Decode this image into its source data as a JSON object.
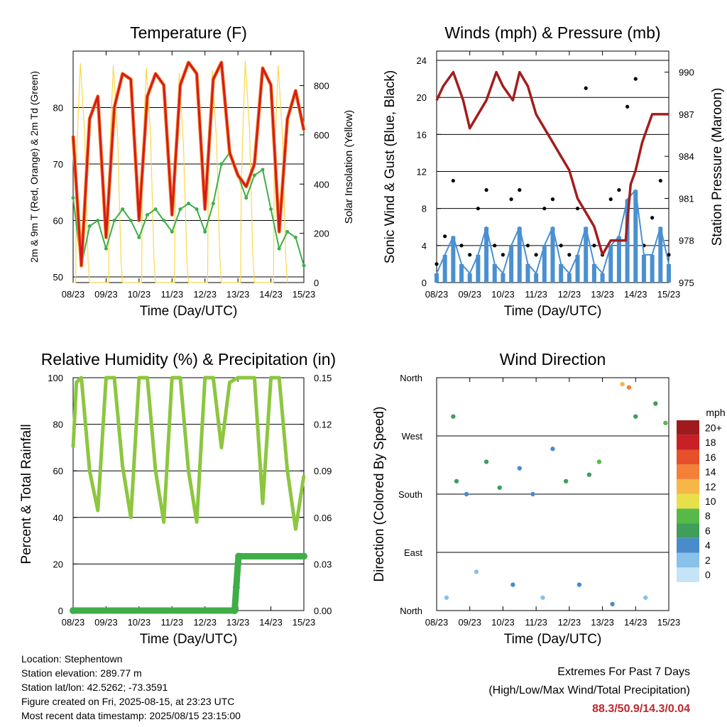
{
  "station": {
    "location": "Location: Stephentown",
    "elevation": "Station elevation: 289.77 m",
    "latlon": "Station lat/lon: 42.5262; -73.3591",
    "created": "Figure created on Fri, 2025-08-15, at 23:23 UTC",
    "latest": "Most recent data timestamp: 2025/08/15 23:15:00"
  },
  "extremes": {
    "title": "Extremes For Past 7 Days",
    "subtitle": "(High/Low/Max Wind/Total Precipitation)",
    "values": "88.3/50.9/14.3/0.04",
    "color": "#c0272d"
  },
  "chart_data": [
    {
      "type": "line",
      "title": "Temperature (F)",
      "xlabel": "Time (Day/UTC)",
      "ylabel": "2m & 9m T (Red, Orange) & 2m Td (Green)",
      "y2label": "Solar Insolation (Yellow)",
      "categories": [
        "08/23",
        "09/23",
        "10/23",
        "11/23",
        "12/23",
        "13/23",
        "14/23",
        "15/23"
      ],
      "xlim": [
        0,
        7
      ],
      "ylim": [
        49,
        90
      ],
      "y2lim": [
        0,
        940
      ],
      "yticks": [
        50,
        60,
        70,
        80
      ],
      "y2ticks": [
        0,
        200,
        400,
        600,
        800
      ],
      "grid": "horizontal at 50, 60, 70, 80",
      "colors": {
        "t2m": "#d7191c",
        "t9m": "#f28e2b",
        "td": "#3fae49",
        "solar": "#f9d84a"
      },
      "series": [
        {
          "name": "2m T",
          "x": [
            0,
            0.25,
            0.5,
            0.75,
            1,
            1.25,
            1.5,
            1.75,
            2,
            2.25,
            2.5,
            2.75,
            3,
            3.25,
            3.5,
            3.75,
            4,
            4.25,
            4.5,
            4.75,
            5,
            5.25,
            5.5,
            5.75,
            6,
            6.25,
            6.5,
            6.75,
            7
          ],
          "values": [
            75,
            52,
            78,
            82,
            57,
            80,
            86,
            85,
            60,
            82,
            86,
            84,
            61,
            84,
            88,
            86,
            62,
            85,
            88,
            72,
            68,
            66,
            70,
            87,
            84,
            58,
            78,
            83,
            76
          ]
        },
        {
          "name": "Td",
          "x": [
            0,
            0.25,
            0.5,
            0.75,
            1,
            1.25,
            1.5,
            1.75,
            2,
            2.25,
            2.5,
            2.75,
            3,
            3.25,
            3.5,
            3.75,
            4,
            4.25,
            4.5,
            4.75,
            5,
            5.25,
            5.5,
            5.75,
            6,
            6.25,
            6.5,
            6.75,
            7
          ],
          "values": [
            64,
            52,
            59,
            60,
            55,
            60,
            62,
            60,
            57,
            61,
            62,
            60,
            58,
            62,
            63,
            62,
            58,
            63,
            70,
            72,
            68,
            64,
            68,
            69,
            62,
            55,
            58,
            57,
            52
          ]
        },
        {
          "name": "Solar",
          "x": [
            0,
            0.08,
            0.1,
            0.22,
            0.35,
            0.45,
            0.5,
            1,
            1.08,
            1.1,
            1.22,
            1.35,
            1.45,
            1.5,
            2,
            2.08,
            2.1,
            2.22,
            2.35,
            2.45,
            2.5,
            3,
            3.08,
            3.1,
            3.22,
            3.35,
            3.45,
            3.5,
            4,
            4.08,
            4.1,
            4.22,
            4.35,
            4.45,
            4.5,
            5,
            5.08,
            5.1,
            5.22,
            5.35,
            5.45,
            5.5,
            6,
            6.08,
            6.1,
            6.22,
            6.35,
            6.45,
            6.5
          ],
          "values": [
            0,
            0,
            500,
            890,
            600,
            100,
            0,
            0,
            0,
            500,
            880,
            600,
            100,
            0,
            0,
            0,
            500,
            870,
            600,
            100,
            0,
            0,
            0,
            450,
            850,
            550,
            90,
            0,
            0,
            0,
            450,
            860,
            580,
            100,
            0,
            0,
            0,
            400,
            900,
            620,
            120,
            0,
            0,
            0,
            480,
            880,
            600,
            100,
            0
          ]
        }
      ]
    },
    {
      "type": "scatter",
      "title": "Winds (mph) & Pressure (mb)",
      "xlabel": "Time (Day/UTC)",
      "ylabel": "Sonic Wind & Gust (Blue, Black)",
      "y2label": "Station Pressure (Maroon)",
      "categories": [
        "08/23",
        "09/23",
        "10/23",
        "11/23",
        "12/23",
        "13/23",
        "14/23",
        "15/23"
      ],
      "xlim": [
        0,
        7
      ],
      "ylim": [
        0,
        25
      ],
      "y2lim": [
        975,
        991.5
      ],
      "yticks": [
        0,
        4,
        8,
        12,
        16,
        20,
        24
      ],
      "y2ticks": [
        975,
        978,
        981,
        984,
        987,
        990
      ],
      "grid": "horizontal at 4, 8, 12, 16, 20, 24",
      "colors": {
        "wind": "#4a90d0",
        "gust": "#000000",
        "pressure": "#a31d1d"
      },
      "series": [
        {
          "name": "Pressure",
          "x": [
            0,
            0.2,
            0.5,
            0.8,
            1,
            1.5,
            1.8,
            2,
            2.3,
            2.5,
            2.75,
            3,
            3.25,
            3.5,
            3.75,
            4,
            4.25,
            4.5,
            4.75,
            5,
            5.25,
            5.5,
            5.7,
            5.85,
            6,
            6.2,
            6.5,
            6.75,
            7
          ],
          "values": [
            988,
            989,
            990,
            988,
            986,
            988,
            990,
            989,
            988,
            990,
            989,
            987,
            986,
            985,
            984,
            983,
            981,
            980,
            979,
            977,
            978,
            978,
            978,
            982,
            983,
            985,
            987,
            987,
            987
          ]
        },
        {
          "name": "Wind",
          "x": [
            0,
            0.25,
            0.5,
            0.75,
            1,
            1.25,
            1.5,
            1.75,
            2,
            2.25,
            2.5,
            2.75,
            3,
            3.25,
            3.5,
            3.75,
            4,
            4.25,
            4.5,
            4.75,
            5,
            5.25,
            5.5,
            5.75,
            6,
            6.25,
            6.5,
            6.75,
            7
          ],
          "values": [
            1,
            3,
            5,
            2,
            1,
            3,
            6,
            2,
            1,
            4,
            6,
            2,
            1,
            4,
            6,
            2,
            1,
            3,
            6,
            2,
            1,
            4,
            5,
            9,
            10,
            3,
            3,
            6,
            2
          ]
        },
        {
          "name": "Gust",
          "x": [
            0,
            0.25,
            0.5,
            0.75,
            1,
            1.25,
            1.5,
            1.75,
            2,
            2.25,
            2.5,
            2.75,
            3,
            3.25,
            3.5,
            3.75,
            4,
            4.25,
            4.5,
            4.75,
            5,
            5.25,
            5.5,
            5.75,
            6,
            6.25,
            6.5,
            6.75,
            7
          ],
          "values": [
            2,
            5,
            11,
            4,
            3,
            8,
            10,
            4,
            3,
            9,
            10,
            4,
            3,
            8,
            9,
            4,
            3,
            8,
            21,
            4,
            3,
            9,
            10,
            19,
            22,
            4,
            7,
            11,
            3
          ]
        }
      ]
    },
    {
      "type": "line",
      "title": "Relative Humidity (%) & Precipitation (in)",
      "xlabel": "Time (Day/UTC)",
      "ylabel": "Percent & Total Rainfall",
      "categories": [
        "08/23",
        "09/23",
        "10/23",
        "11/23",
        "12/23",
        "13/23",
        "14/23",
        "15/23"
      ],
      "xlim": [
        0,
        7
      ],
      "ylim": [
        0,
        100
      ],
      "y2lim": [
        0,
        0.15
      ],
      "yticks": [
        0,
        20,
        40,
        60,
        80,
        100
      ],
      "y2ticks": [
        "0.00",
        "0.03",
        "0.06",
        "0.09",
        "0.12",
        "0.15"
      ],
      "grid": "horizontal at 20, 40, 60, 80, 100",
      "colors": {
        "rh": "#8dc63f",
        "precip": "#3fae49"
      },
      "series": [
        {
          "name": "RH",
          "x": [
            0,
            0.1,
            0.25,
            0.5,
            0.75,
            1,
            1.25,
            1.5,
            1.75,
            2,
            2.25,
            2.5,
            2.75,
            3,
            3.25,
            3.5,
            3.75,
            4,
            4.25,
            4.5,
            4.75,
            5,
            5.25,
            5.5,
            5.75,
            6,
            6.25,
            6.5,
            6.75,
            7
          ],
          "values": [
            70,
            98,
            100,
            60,
            43,
            100,
            100,
            62,
            40,
            100,
            100,
            60,
            38,
            100,
            100,
            60,
            38,
            100,
            100,
            70,
            98,
            100,
            100,
            100,
            46,
            100,
            100,
            60,
            35,
            58
          ]
        },
        {
          "name": "Precipitation",
          "x": [
            0,
            4.9,
            4.95,
            5.0,
            5.02,
            7
          ],
          "values": [
            0,
            0,
            0.015,
            0.03,
            0.035,
            0.035
          ]
        }
      ]
    },
    {
      "type": "scatter",
      "title": "Wind Direction",
      "xlabel": "Time (Day/UTC)",
      "ylabel": "Direction (Colored By Speed)",
      "categories": [
        "08/23",
        "09/23",
        "10/23",
        "11/23",
        "12/23",
        "13/23",
        "14/23",
        "15/23"
      ],
      "xlim": [
        0,
        7
      ],
      "ylim": [
        0,
        360
      ],
      "yticklabels": [
        "North",
        "East",
        "South",
        "West",
        "North"
      ],
      "yticks": [
        0,
        90,
        180,
        270,
        360
      ],
      "grid": "horizontal at East, South, West",
      "colorbar_title": "mph",
      "colorbar_labels": [
        "0",
        "2",
        "4",
        "6",
        "8",
        "10",
        "12",
        "14",
        "16",
        "18",
        "20+"
      ],
      "colorbar_colors": [
        "#c6e4f7",
        "#88c1ea",
        "#4a8ccb",
        "#3f9e5a",
        "#57b948",
        "#e8e04a",
        "#f7b648",
        "#f47f36",
        "#e6502b",
        "#c91f26",
        "#9e1a1d"
      ],
      "values": [
        [
          0.3,
          20,
          2
        ],
        [
          0.5,
          300,
          5
        ],
        [
          0.6,
          200,
          6
        ],
        [
          0.9,
          180,
          4
        ],
        [
          1.2,
          60,
          2
        ],
        [
          1.5,
          230,
          6
        ],
        [
          1.9,
          190,
          5
        ],
        [
          2.3,
          40,
          3
        ],
        [
          2.5,
          220,
          4
        ],
        [
          2.9,
          180,
          4
        ],
        [
          3.2,
          20,
          2
        ],
        [
          3.5,
          250,
          4
        ],
        [
          3.9,
          200,
          5
        ],
        [
          4.3,
          40,
          3
        ],
        [
          4.6,
          210,
          5
        ],
        [
          4.9,
          230,
          8
        ],
        [
          5.3,
          10,
          3
        ],
        [
          5.6,
          350,
          12
        ],
        [
          5.8,
          345,
          14
        ],
        [
          6.0,
          300,
          6
        ],
        [
          6.3,
          20,
          2
        ],
        [
          6.6,
          320,
          6
        ],
        [
          6.9,
          290,
          7
        ]
      ]
    }
  ]
}
